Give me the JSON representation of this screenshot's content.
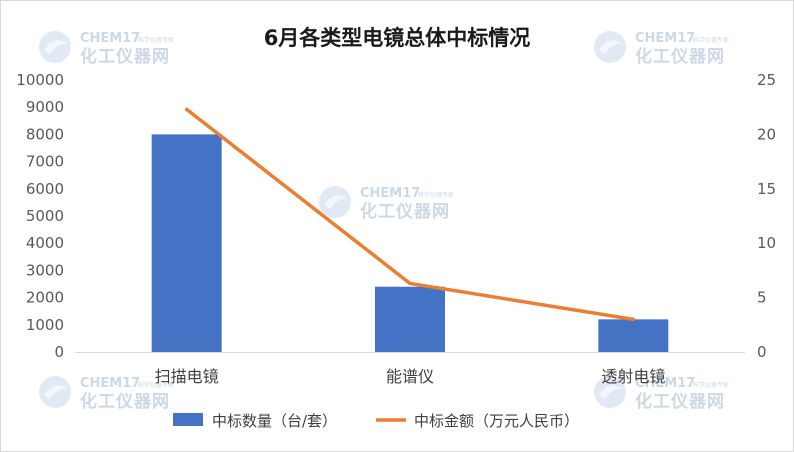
{
  "chart_data": {
    "type": "bar+line",
    "title": "6月各类型电镜总体中标情况",
    "categories": [
      "扫描电镜",
      "能谱仪",
      "透射电镜"
    ],
    "series": [
      {
        "name": "中标数量（台/套）",
        "type": "bar",
        "axis": "left",
        "values": [
          8000,
          2400,
          1200
        ],
        "color": "#4472c4"
      },
      {
        "name": "中标金额（万元人民币）",
        "type": "line",
        "axis": "right",
        "values": [
          22.3,
          6.3,
          3.0
        ],
        "color": "#ed7d31"
      }
    ],
    "y_left": {
      "ylim": [
        0,
        10000
      ],
      "ticks": [
        "0",
        "1000",
        "2000",
        "3000",
        "4000",
        "5000",
        "6000",
        "7000",
        "8000",
        "9000",
        "10000"
      ]
    },
    "y_right": {
      "ylim": [
        0,
        25
      ],
      "ticks": [
        "0",
        "5",
        "10",
        "15",
        "20",
        "25"
      ]
    },
    "grid": false,
    "legend_position": "bottom"
  },
  "watermark": {
    "brand_en": "CHEM17",
    "brand_cn": "化工仪器网",
    "tagline": "科学仪器专家"
  }
}
